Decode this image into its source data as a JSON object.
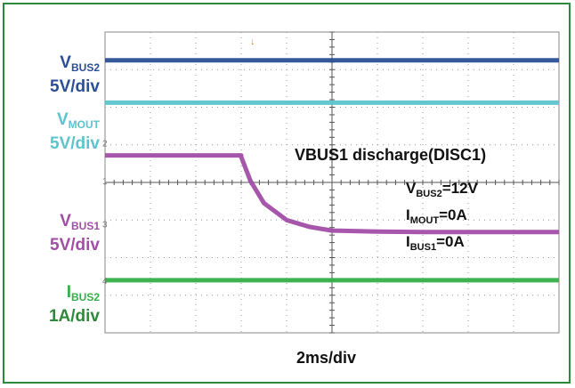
{
  "chart_data": {
    "type": "line",
    "title": "VBUS1 discharge(DISC1)",
    "xlabel": "2ms/div",
    "x_divisions": 10,
    "y_divisions": 8,
    "grid": true,
    "conditions": [
      {
        "name": "V",
        "sub": "BUS2",
        "value": "=12V"
      },
      {
        "name": "I",
        "sub": "MOUT",
        "value": "=0A"
      },
      {
        "name": "I",
        "sub": "BUS1",
        "value": "=0A"
      }
    ],
    "series": [
      {
        "name": "V",
        "sub": "BUS2",
        "scale": "5V/div",
        "color": "#2a4f96",
        "x_div": [
          0,
          10
        ],
        "level_div": [
          3.25,
          3.25
        ]
      },
      {
        "name": "V",
        "sub": "MOUT",
        "scale": "5V/div",
        "color": "#5cc4cc",
        "x_div": [
          0,
          10
        ],
        "level_div": [
          2.12,
          2.12
        ]
      },
      {
        "name": "V",
        "sub": "BUS1",
        "scale": "5V/div",
        "color": "#a24ea6",
        "x_div": [
          0,
          3,
          3,
          3.2,
          3.5,
          4,
          4.5,
          5,
          6,
          7,
          8,
          9,
          10
        ],
        "level_div": [
          0.72,
          0.72,
          0.68,
          0.05,
          -0.55,
          -1.0,
          -1.18,
          -1.28,
          -1.31,
          -1.32,
          -1.32,
          -1.32,
          -1.32
        ]
      },
      {
        "name": "I",
        "sub": "BUS2",
        "scale": "1A/div",
        "color": "#33b048",
        "x_div": [
          0,
          10
        ],
        "level_div": [
          -2.6,
          -2.6
        ]
      }
    ],
    "channel_markers": [
      "1",
      "2",
      "3",
      "4"
    ]
  },
  "colors": {
    "border": "#2e8a3a",
    "grid": "#9a9a9a",
    "label_text": "#111111"
  }
}
